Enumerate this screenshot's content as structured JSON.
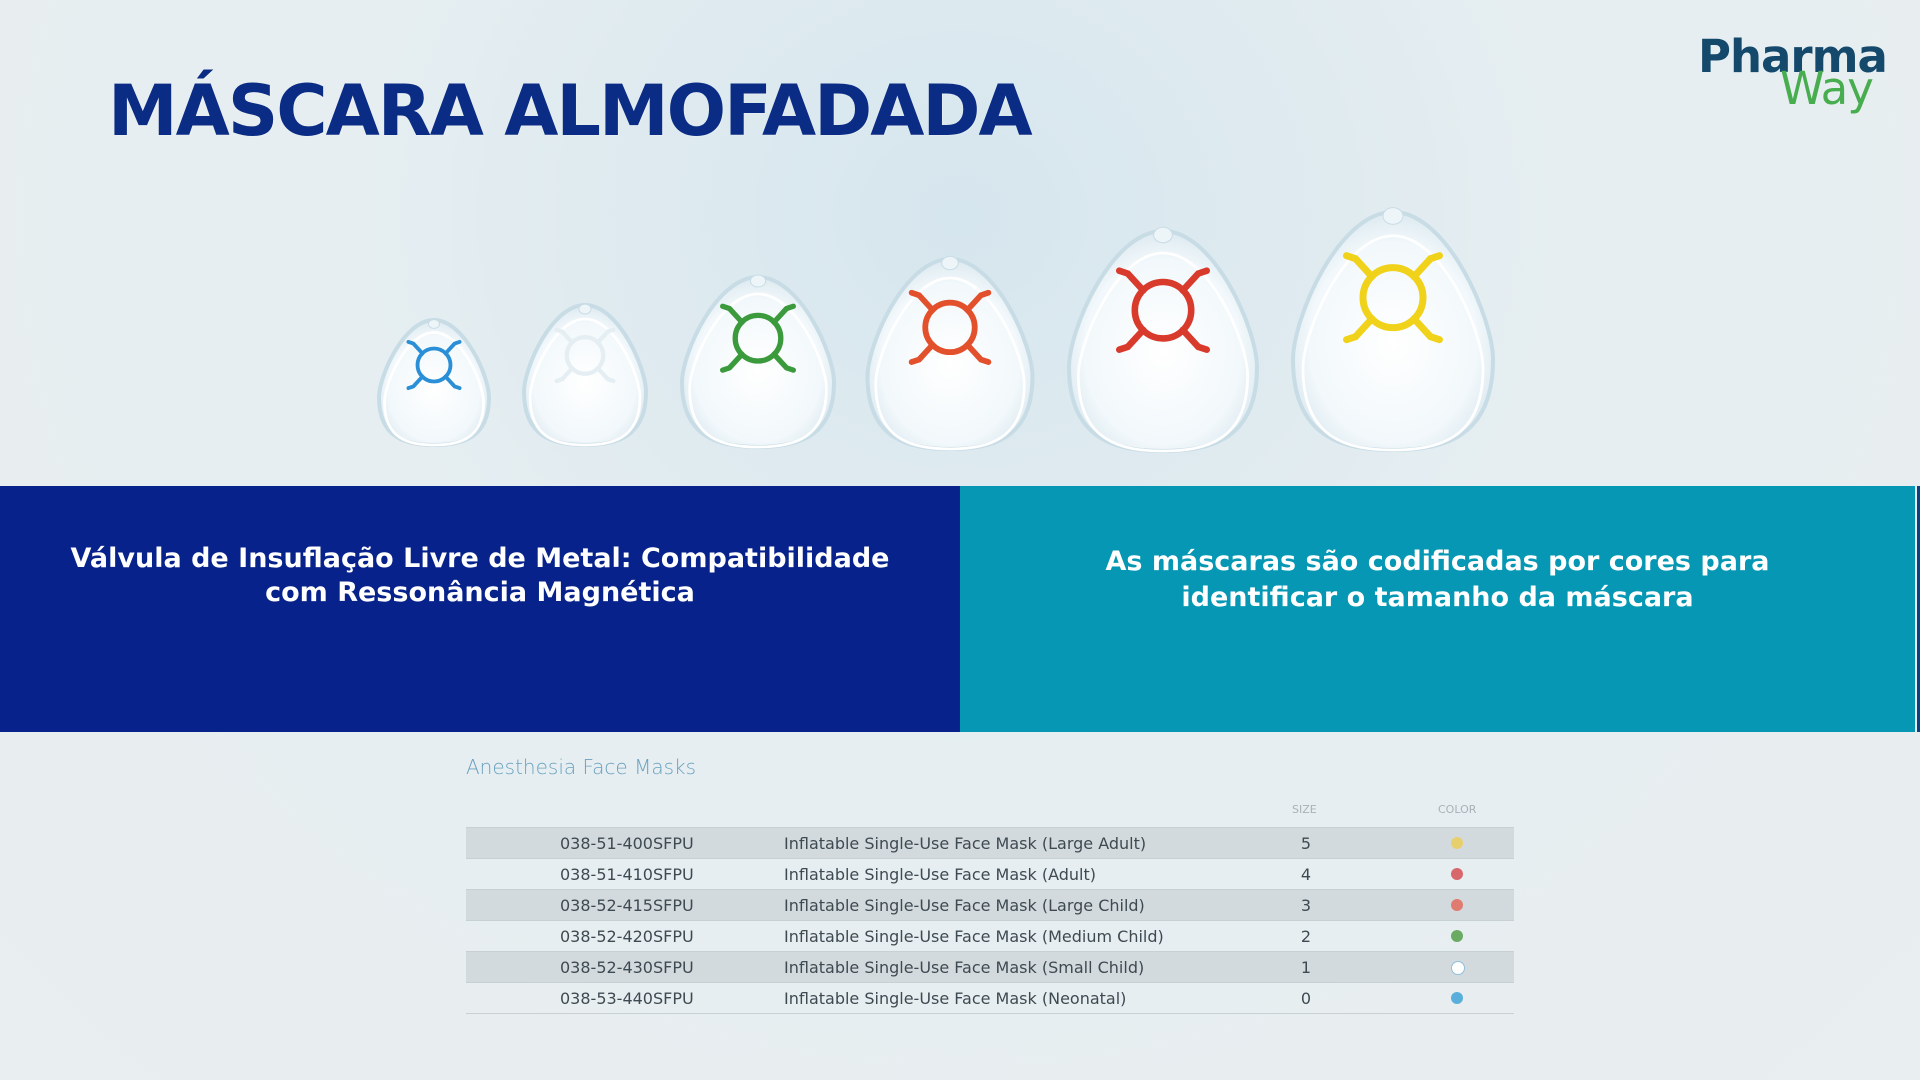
{
  "page": {
    "title": "MÁSCARA ALMOFADADA"
  },
  "logo": {
    "line1": "Pharma",
    "line2": "Way"
  },
  "masks": [
    {
      "size": 0,
      "color": "#2a8fd6"
    },
    {
      "size": 1,
      "color": "#ffffff"
    },
    {
      "size": 2,
      "color": "#3a9a3c"
    },
    {
      "size": 3,
      "color": "#e2502c"
    },
    {
      "size": 4,
      "color": "#d83a2c"
    },
    {
      "size": 5,
      "color": "#f0d21a"
    }
  ],
  "panels": {
    "left_text": "Válvula de Insuflação Livre de Metal: Compatibilidade com Ressonância Magnética",
    "right_text": "As máscaras são codificadas por cores para identificar o tamanho da máscara"
  },
  "table": {
    "title": "Anesthesia Face Masks",
    "headers": {
      "size": "SIZE",
      "color": "COLOR"
    },
    "rows": [
      {
        "code": "038-51-400SFPU",
        "description": "Inflatable Single-Use Face Mask (Large Adult)",
        "size": "5",
        "color": "#e8cf6e"
      },
      {
        "code": "038-51-410SFPU",
        "description": "Inflatable Single-Use Face Mask (Adult)",
        "size": "4",
        "color": "#d8676b"
      },
      {
        "code": "038-52-415SFPU",
        "description": "Inflatable Single-Use Face Mask (Large Child)",
        "size": "3",
        "color": "#e07b70"
      },
      {
        "code": "038-52-420SFPU",
        "description": "Inflatable Single-Use Face Mask (Medium Child)",
        "size": "2",
        "color": "#6aaa62"
      },
      {
        "code": "038-52-430SFPU",
        "description": "Inflatable Single-Use Face Mask (Small Child)",
        "size": "1",
        "color": "#ffffff"
      },
      {
        "code": "038-53-440SFPU",
        "description": "Inflatable Single-Use Face Mask (Neonatal)",
        "size": "0",
        "color": "#5aaedc"
      }
    ]
  }
}
